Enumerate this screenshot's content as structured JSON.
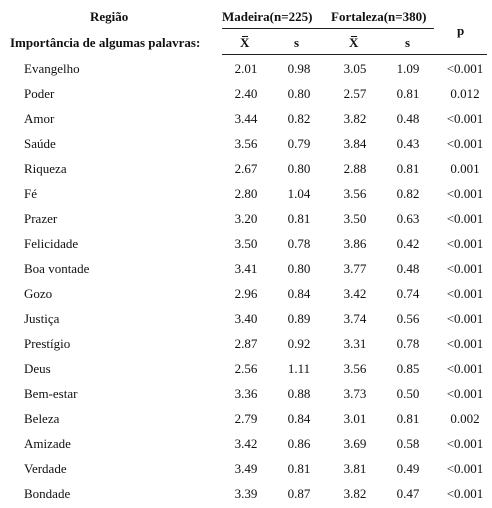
{
  "header": {
    "region_label": "Região",
    "group1": "Madeira(n=225)",
    "group2": "Fortaleza(n=380)",
    "subtitle": "Importância de algumas palavras:",
    "mean_symbol": "X",
    "sd_symbol": "s",
    "p_label": "p"
  },
  "rows": [
    {
      "word": "Evangelho",
      "m1": "2.01",
      "s1": "0.98",
      "m2": "3.05",
      "s2": "1.09",
      "p": "<0.001"
    },
    {
      "word": "Poder",
      "m1": "2.40",
      "s1": "0.80",
      "m2": "2.57",
      "s2": "0.81",
      "p": "0.012"
    },
    {
      "word": "Amor",
      "m1": "3.44",
      "s1": "0.82",
      "m2": "3.82",
      "s2": "0.48",
      "p": "<0.001"
    },
    {
      "word": "Saúde",
      "m1": "3.56",
      "s1": "0.79",
      "m2": "3.84",
      "s2": "0.43",
      "p": "<0.001"
    },
    {
      "word": "Riqueza",
      "m1": "2.67",
      "s1": "0.80",
      "m2": "2.88",
      "s2": "0.81",
      "p": "0.001"
    },
    {
      "word": "Fé",
      "m1": "2.80",
      "s1": "1.04",
      "m2": "3.56",
      "s2": "0.82",
      "p": "<0.001"
    },
    {
      "word": "Prazer",
      "m1": "3.20",
      "s1": "0.81",
      "m2": "3.50",
      "s2": "0.63",
      "p": "<0.001"
    },
    {
      "word": "Felicidade",
      "m1": "3.50",
      "s1": "0.78",
      "m2": "3.86",
      "s2": "0.42",
      "p": "<0.001"
    },
    {
      "word": "Boa vontade",
      "m1": "3.41",
      "s1": "0.80",
      "m2": "3.77",
      "s2": "0.48",
      "p": "<0.001"
    },
    {
      "word": "Gozo",
      "m1": "2.96",
      "s1": "0.84",
      "m2": "3.42",
      "s2": "0.74",
      "p": "<0.001"
    },
    {
      "word": "Justiça",
      "m1": "3.40",
      "s1": "0.89",
      "m2": "3.74",
      "s2": "0.56",
      "p": "<0.001"
    },
    {
      "word": "Prestígio",
      "m1": "2.87",
      "s1": "0.92",
      "m2": "3.31",
      "s2": "0.78",
      "p": "<0.001"
    },
    {
      "word": "Deus",
      "m1": "2.56",
      "s1": "1.11",
      "m2": "3.56",
      "s2": "0.85",
      "p": "<0.001"
    },
    {
      "word": "Bem-estar",
      "m1": "3.36",
      "s1": "0.88",
      "m2": "3.73",
      "s2": "0.50",
      "p": "<0.001"
    },
    {
      "word": "Beleza",
      "m1": "2.79",
      "s1": "0.84",
      "m2": "3.01",
      "s2": "0.81",
      "p": "0.002"
    },
    {
      "word": "Amizade",
      "m1": "3.42",
      "s1": "0.86",
      "m2": "3.69",
      "s2": "0.58",
      "p": "<0.001"
    },
    {
      "word": "Verdade",
      "m1": "3.49",
      "s1": "0.81",
      "m2": "3.81",
      "s2": "0.49",
      "p": "<0.001"
    },
    {
      "word": "Bondade",
      "m1": "3.39",
      "s1": "0.87",
      "m2": "3.82",
      "s2": "0.47",
      "p": "<0.001"
    }
  ]
}
